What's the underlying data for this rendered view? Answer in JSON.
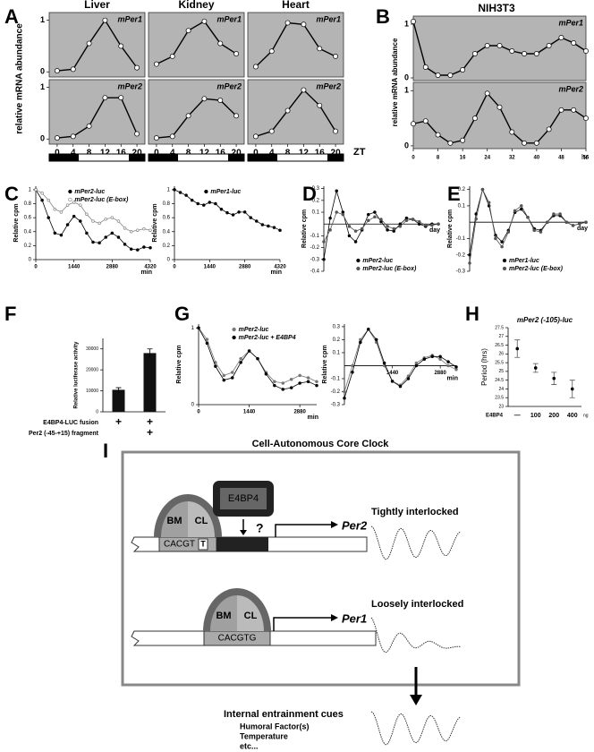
{
  "panel_letters": [
    "A",
    "B",
    "C",
    "D",
    "E",
    "F",
    "G",
    "H",
    "I"
  ],
  "labels": {
    "A_ylabel": "relative mRNA abundance",
    "A_xunit": "ZT",
    "B_title": "NIH3T3",
    "B_ylabel": "relative mRNA abundance",
    "B_xunit": "hr"
  },
  "chart_data": [
    {
      "type": "line",
      "title": "Liver",
      "annotation": "mPer1",
      "background": "#b4b4b4",
      "x": [
        0,
        4,
        8,
        12,
        16,
        20
      ],
      "xlim": [
        -2,
        22
      ],
      "ylim": [
        -0.1,
        1.15
      ],
      "yticks": [
        0,
        1
      ],
      "series": [
        {
          "color": "#000000",
          "marker": "open",
          "values": [
            0.02,
            0.05,
            0.55,
            1.0,
            0.5,
            0.08
          ]
        }
      ]
    },
    {
      "type": "line",
      "title": "Kidney",
      "annotation": "mPer1",
      "background": "#b4b4b4",
      "x": [
        0,
        4,
        8,
        12,
        16,
        20
      ],
      "xlim": [
        -2,
        22
      ],
      "ylim": [
        -0.1,
        1.15
      ],
      "series": [
        {
          "color": "#000000",
          "marker": "open",
          "values": [
            0.15,
            0.3,
            0.8,
            0.98,
            0.55,
            0.35
          ]
        }
      ]
    },
    {
      "type": "line",
      "title": "Heart",
      "annotation": "mPer1",
      "background": "#b4b4b4",
      "x": [
        0,
        4,
        8,
        12,
        16,
        20
      ],
      "xlim": [
        -2,
        22
      ],
      "ylim": [
        -0.1,
        1.15
      ],
      "series": [
        {
          "color": "#000000",
          "marker": "open",
          "values": [
            0.1,
            0.4,
            0.95,
            0.92,
            0.45,
            0.3
          ]
        }
      ]
    },
    {
      "type": "line",
      "annotation": "mPer2",
      "background": "#b4b4b4",
      "x": [
        0,
        4,
        8,
        12,
        16,
        20
      ],
      "xlim": [
        -2,
        22
      ],
      "ylim": [
        -0.1,
        1.15
      ],
      "yticks": [
        0,
        1
      ],
      "xticks": [
        0,
        4,
        8,
        12,
        16,
        20
      ],
      "series": [
        {
          "color": "#000000",
          "marker": "open",
          "values": [
            0.02,
            0.05,
            0.25,
            0.8,
            0.8,
            0.1
          ]
        }
      ]
    },
    {
      "type": "line",
      "annotation": "mPer2",
      "background": "#b4b4b4",
      "x": [
        0,
        4,
        8,
        12,
        16,
        20
      ],
      "xlim": [
        -2,
        22
      ],
      "ylim": [
        -0.1,
        1.15
      ],
      "xticks": [
        0,
        4,
        8,
        12,
        16,
        20
      ],
      "series": [
        {
          "color": "#000000",
          "marker": "open",
          "values": [
            0.02,
            0.05,
            0.45,
            0.78,
            0.75,
            0.45
          ]
        }
      ]
    },
    {
      "type": "line",
      "annotation": "mPer2",
      "background": "#b4b4b4",
      "x": [
        0,
        4,
        8,
        12,
        16,
        20
      ],
      "xlim": [
        -2,
        22
      ],
      "ylim": [
        -0.1,
        1.15
      ],
      "xticks": [
        0,
        4,
        8,
        12,
        16,
        20
      ],
      "series": [
        {
          "color": "#000000",
          "marker": "open",
          "values": [
            0.05,
            0.15,
            0.55,
            0.95,
            0.65,
            0.15
          ]
        }
      ]
    },
    {
      "type": "line",
      "annotation": "mPer1",
      "background": "#b4b4b4",
      "x": [
        0,
        4,
        8,
        12,
        16,
        20,
        24,
        28,
        32,
        36,
        40,
        44,
        48,
        52,
        56
      ],
      "xlim": [
        0,
        56
      ],
      "ylim": [
        -0.05,
        1.15
      ],
      "yticks": [
        0,
        1
      ],
      "series": [
        {
          "color": "#000000",
          "marker": "open",
          "values": [
            1.05,
            0.2,
            0.05,
            0.05,
            0.15,
            0.45,
            0.6,
            0.6,
            0.5,
            0.45,
            0.45,
            0.6,
            0.75,
            0.65,
            0.5
          ]
        }
      ]
    },
    {
      "type": "line",
      "annotation": "mPer2",
      "background": "#b4b4b4",
      "x": [
        0,
        4,
        8,
        12,
        16,
        20,
        24,
        28,
        32,
        36,
        40,
        44,
        48,
        52,
        56
      ],
      "xlim": [
        0,
        56
      ],
      "ylim": [
        -0.05,
        1.15
      ],
      "yticks": [
        0,
        1
      ],
      "xticks": [
        0,
        8,
        16,
        24,
        32,
        40,
        48,
        56
      ],
      "series": [
        {
          "color": "#000000",
          "marker": "open",
          "values": [
            0.4,
            0.45,
            0.2,
            0.05,
            0.1,
            0.5,
            0.95,
            0.7,
            0.25,
            0.05,
            0.05,
            0.3,
            0.65,
            0.65,
            0.5
          ]
        }
      ]
    },
    {
      "type": "line",
      "ylabel": "Relative cpm",
      "xlabel": "min",
      "legend": "upper right",
      "x": [
        0,
        240,
        480,
        720,
        960,
        1200,
        1440,
        1680,
        1920,
        2160,
        2400,
        2640,
        2880,
        3120,
        3360,
        3600,
        3840,
        4080,
        4320
      ],
      "xlim": [
        0,
        4320
      ],
      "ylim": [
        0,
        1.05
      ],
      "yticks": [
        0,
        0.2,
        0.4,
        0.6,
        0.8,
        1
      ],
      "xticks": [
        0,
        1440,
        2880,
        4320
      ],
      "series": [
        {
          "name": "mPer2-luc",
          "color": "#000000",
          "marker": "dot",
          "values": [
            1.0,
            0.85,
            0.6,
            0.38,
            0.35,
            0.5,
            0.62,
            0.55,
            0.38,
            0.25,
            0.24,
            0.32,
            0.38,
            0.32,
            0.22,
            0.15,
            0.14,
            0.18,
            0.17
          ]
        },
        {
          "name": "mPer2-luc (E-box)",
          "color": "#888888",
          "marker": "open",
          "values": [
            1.0,
            0.95,
            0.85,
            0.72,
            0.68,
            0.78,
            0.82,
            0.78,
            0.65,
            0.55,
            0.52,
            0.58,
            0.6,
            0.55,
            0.45,
            0.4,
            0.42,
            0.44,
            0.42
          ]
        }
      ]
    },
    {
      "type": "line",
      "ylabel": "Relative cpm",
      "xlabel": "min",
      "legend": "upper right",
      "x": [
        0,
        240,
        480,
        720,
        960,
        1200,
        1440,
        1680,
        1920,
        2160,
        2400,
        2640,
        2880,
        3120,
        3360,
        3600,
        3840,
        4080,
        4320
      ],
      "xlim": [
        0,
        4320
      ],
      "ylim": [
        0,
        1.05
      ],
      "yticks": [
        0,
        0.2,
        0.4,
        0.6,
        0.8,
        1
      ],
      "xticks": [
        0,
        1440,
        2880,
        4320
      ],
      "series": [
        {
          "name": "mPer1-luc",
          "color": "#000000",
          "marker": "dot",
          "values": [
            1.0,
            0.96,
            0.92,
            0.85,
            0.8,
            0.78,
            0.82,
            0.8,
            0.72,
            0.67,
            0.64,
            0.68,
            0.68,
            0.6,
            0.55,
            0.5,
            0.48,
            0.46,
            0.42
          ]
        }
      ]
    },
    {
      "type": "line",
      "ylabel": "Relative cpm",
      "xlabel": "day",
      "legend": "lower right",
      "x": [
        0,
        240,
        480,
        720,
        960,
        1200,
        1440,
        1680,
        1920,
        2160,
        2400,
        2640,
        2880,
        3120,
        3360,
        3600,
        3840,
        4080,
        4320
      ],
      "xlim": [
        0,
        4320
      ],
      "ylim": [
        -0.4,
        0.32
      ],
      "yticks": [
        -0.4,
        -0.3,
        -0.2,
        -0.1,
        0.1,
        0.2,
        0.3
      ],
      "series": [
        {
          "name": "mPer2-luc",
          "color": "#000000",
          "marker": "dot",
          "values": [
            -0.3,
            0.05,
            0.28,
            0.1,
            -0.1,
            -0.15,
            -0.05,
            0.08,
            0.1,
            0.02,
            -0.05,
            -0.06,
            0.0,
            0.05,
            0.04,
            0.0,
            -0.02,
            0.0,
            0.0
          ]
        },
        {
          "name": "mPer2-luc (E-box)",
          "color": "#555555",
          "marker": "dot",
          "values": [
            -0.15,
            -0.05,
            0.1,
            0.08,
            -0.02,
            -0.06,
            -0.04,
            0.03,
            0.06,
            0.04,
            -0.02,
            -0.04,
            -0.02,
            0.03,
            0.04,
            0.02,
            -0.01,
            -0.01,
            0.0
          ]
        }
      ]
    },
    {
      "type": "line",
      "ylabel": "Relative cpm",
      "xlabel": "day",
      "legend": "lower right",
      "x": [
        0,
        240,
        480,
        720,
        960,
        1200,
        1440,
        1680,
        1920,
        2160,
        2400,
        2640,
        2880,
        3120,
        3360,
        3600,
        3840,
        4080,
        4320
      ],
      "xlim": [
        0,
        4320
      ],
      "ylim": [
        -0.3,
        0.22
      ],
      "yticks": [
        -0.3,
        -0.2,
        -0.1,
        0.1,
        0.2
      ],
      "series": [
        {
          "name": "mPer1-luc",
          "color": "#000000",
          "marker": "dot",
          "values": [
            -0.2,
            0.05,
            0.2,
            0.1,
            -0.08,
            -0.12,
            -0.05,
            0.06,
            0.08,
            0.03,
            -0.04,
            -0.05,
            0.0,
            0.04,
            0.04,
            0.0,
            -0.02,
            -0.01,
            0.0
          ]
        },
        {
          "name": "mPer2-luc (E-box)",
          "color": "#555555",
          "marker": "dot",
          "values": [
            -0.25,
            0.02,
            0.2,
            0.12,
            -0.1,
            -0.15,
            -0.06,
            0.07,
            0.1,
            0.03,
            -0.05,
            -0.06,
            0.0,
            0.05,
            0.05,
            0.0,
            -0.02,
            -0.01,
            0.0
          ]
        }
      ]
    },
    {
      "type": "bar",
      "ylabel": "Relative luciferase activity",
      "color": "#111111",
      "values": [
        10500,
        28000
      ],
      "errors": [
        1000,
        2000
      ],
      "ylim": [
        0,
        35000
      ],
      "yticks": [
        0,
        10000,
        20000,
        30000
      ],
      "rows": [
        {
          "label": "E4BP4-LUC fusion",
          "marks": [
            "+",
            "+"
          ]
        },
        {
          "label": "Per2 (-45-+15) fragment",
          "marks": [
            null,
            "+"
          ]
        }
      ]
    },
    {
      "type": "line",
      "ylabel": "Relative cpm",
      "xlabel": "min",
      "legend": "upper right",
      "x": [
        0,
        240,
        480,
        720,
        960,
        1200,
        1440,
        1680,
        1920,
        2160,
        2400,
        2640,
        2880,
        3120,
        3360
      ],
      "xlim": [
        0,
        3360
      ],
      "ylim": [
        0,
        1.05
      ],
      "yticks": [
        0,
        1
      ],
      "xticks": [
        0,
        1440,
        2880
      ],
      "series": [
        {
          "name": "mPer2-luc",
          "color": "#777777",
          "marker": "dot",
          "values": [
            1.0,
            0.85,
            0.55,
            0.38,
            0.42,
            0.6,
            0.7,
            0.6,
            0.42,
            0.3,
            0.28,
            0.33,
            0.38,
            0.35,
            0.3
          ]
        },
        {
          "name": "mPer2-luc + E4BP4",
          "color": "#000000",
          "marker": "dot",
          "values": [
            1.0,
            0.8,
            0.5,
            0.32,
            0.35,
            0.55,
            0.7,
            0.6,
            0.4,
            0.25,
            0.2,
            0.22,
            0.28,
            0.3,
            0.25
          ]
        }
      ]
    },
    {
      "type": "line",
      "ylabel": "Relative cpm",
      "xlabel": "min",
      "x": [
        0,
        240,
        480,
        720,
        960,
        1200,
        1440,
        1680,
        1920,
        2160,
        2400,
        2640,
        2880,
        3120,
        3360
      ],
      "xlim": [
        0,
        3360
      ],
      "ylim": [
        -0.3,
        0.32
      ],
      "yticks": [
        -0.3,
        -0.2,
        -0.1,
        0.1,
        0.2,
        0.3
      ],
      "xticks": [
        1440,
        2880
      ],
      "series": [
        {
          "color": "#777777",
          "marker": "dot",
          "values": [
            -0.2,
            0.0,
            0.2,
            0.28,
            0.18,
            0.0,
            -0.12,
            -0.15,
            -0.08,
            0.02,
            0.06,
            0.08,
            0.05,
            0.0,
            -0.03
          ]
        },
        {
          "color": "#000000",
          "marker": "dot",
          "values": [
            -0.25,
            -0.05,
            0.18,
            0.28,
            0.2,
            0.02,
            -0.12,
            -0.16,
            -0.1,
            0.0,
            0.05,
            0.07,
            0.07,
            0.03,
            -0.01
          ]
        }
      ]
    },
    {
      "type": "errorpoint",
      "title": "mPer2 (-105)-luc",
      "ylabel": "Period (hrs)",
      "xlabel": "E4BP4",
      "unit": "ng",
      "categories": [
        "—",
        "100",
        "200",
        "400"
      ],
      "values": [
        26.3,
        25.2,
        24.6,
        24.0
      ],
      "errors": [
        0.5,
        0.25,
        0.35,
        0.5
      ],
      "ylim": [
        23,
        27.5
      ],
      "yticks": [
        23,
        23.5,
        24,
        24.5,
        25,
        25.5,
        26,
        26.5,
        27,
        27.5
      ],
      "color": "#000000"
    }
  ],
  "diagram": {
    "title": "Cell-Autonomous Core Clock",
    "repressor": "E4BP4",
    "question": "?",
    "per2": {
      "bm": "BM",
      "cl": "CL",
      "site": "CACGT",
      "site_variant": "T",
      "gene": "Per2",
      "mode": "Tightly interlocked"
    },
    "per1": {
      "bm": "BM",
      "cl": "CL",
      "site": "CACGTG",
      "gene": "Per1",
      "mode": "Loosely interlocked"
    },
    "cues": {
      "title": "Internal entrainment cues",
      "items": [
        "Humoral Factor(s)",
        "Temperature",
        "etc..."
      ]
    }
  }
}
